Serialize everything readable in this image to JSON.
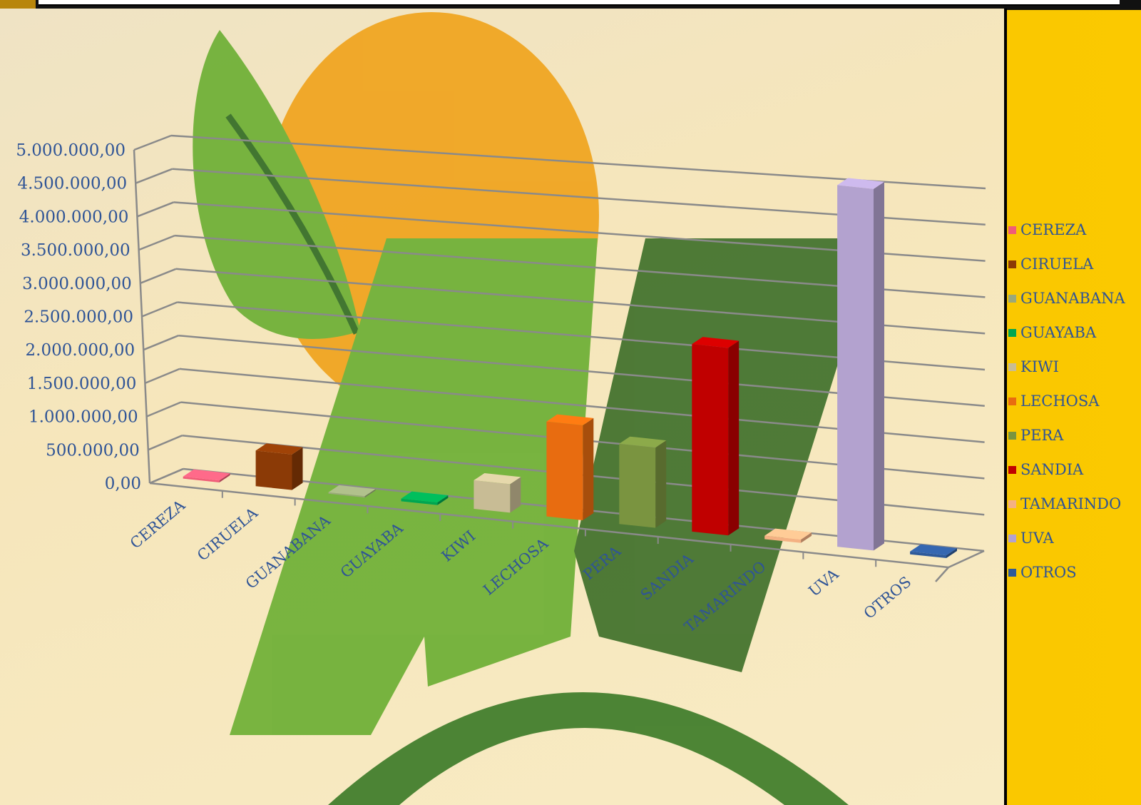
{
  "chart_data": {
    "type": "bar",
    "title": "",
    "xlabel": "",
    "ylabel": "",
    "ylim": [
      0,
      5000000
    ],
    "y_ticks": [
      "0,00",
      "500.000,00",
      "1.000.000,00",
      "1.500.000,00",
      "2.000.000,00",
      "2.500.000,00",
      "3.000.000,00",
      "3.500.000,00",
      "4.000.000,00",
      "4.500.000,00",
      "5.000.000,00"
    ],
    "categories": [
      "CEREZA",
      "CIRUELA",
      "GUANABANA",
      "GUAYABA",
      "KIWI",
      "LECHOSA",
      "PERA",
      "SANDIA",
      "TAMARINDO",
      "UVA",
      "OTROS"
    ],
    "values": [
      30000,
      530000,
      20000,
      40000,
      420000,
      1390000,
      1170000,
      2720000,
      50000,
      5200000,
      40000
    ],
    "colors": [
      "#f05c78",
      "#8b3a06",
      "#9aa87a",
      "#00a651",
      "#c8bc95",
      "#e86c10",
      "#7a9440",
      "#c00000",
      "#f4b183",
      "#b3a2cf",
      "#2e5a9a"
    ],
    "three_d": true,
    "grid": true,
    "legend": {
      "position": "right",
      "entries": [
        "CEREZA",
        "CIRUELA",
        "GUANABANA",
        "GUAYABA",
        "KIWI",
        "LECHOSA",
        "PERA",
        "SANDIA",
        "TAMARINDO",
        "UVA",
        "OTROS"
      ]
    }
  }
}
